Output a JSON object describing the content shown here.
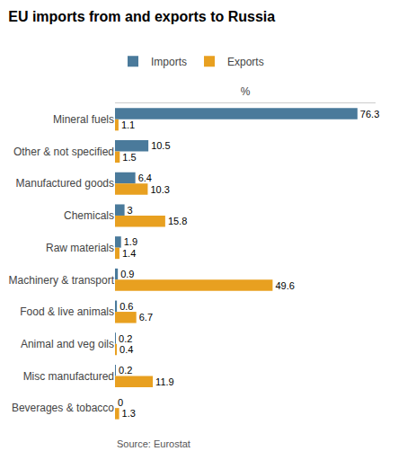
{
  "chart_data": {
    "type": "bar",
    "orientation": "horizontal",
    "title": "EU imports from and exports to Russia",
    "xlabel": "%",
    "annotations": [
      "Source: Eurostat"
    ],
    "categories": [
      "Mineral fuels",
      "Other & not specified",
      "Manufactured goods",
      "Chemicals",
      "Raw materials",
      "Machinery & transport",
      "Food & live animals",
      "Animal and veg oils",
      "Misc manufactured",
      "Beverages & tobacco"
    ],
    "series": [
      {
        "name": "Imports",
        "color": "#4a7a9b",
        "values": [
          76.3,
          10.5,
          6.4,
          3.0,
          1.9,
          0.9,
          0.6,
          0.2,
          0.2,
          0
        ]
      },
      {
        "name": "Exports",
        "color": "#e8a020",
        "values": [
          1.1,
          1.5,
          10.3,
          15.8,
          1.4,
          49.6,
          6.7,
          0.4,
          11.9,
          1.3
        ]
      }
    ],
    "xlim": [
      0,
      82
    ],
    "xticks": [],
    "tick_labels": "y",
    "data_labels": true,
    "grid": false,
    "legend": "top"
  }
}
